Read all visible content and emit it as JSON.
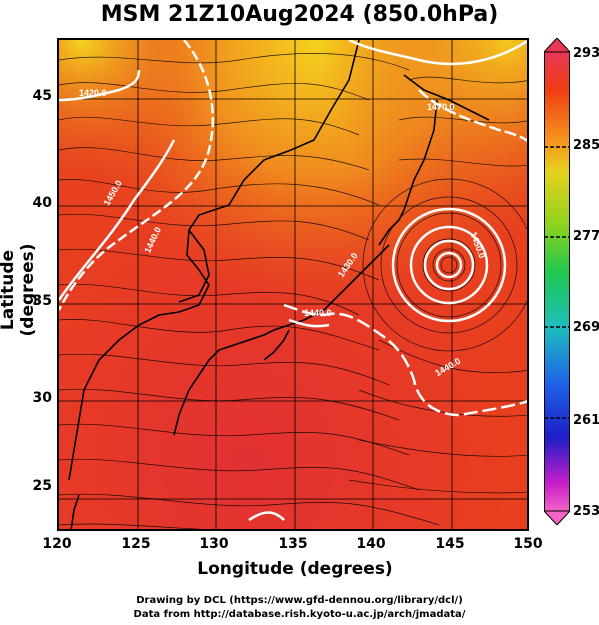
{
  "title": "MSM 21Z10Aug2024 (850.0hPa)",
  "axes": {
    "xlabel": "Longitude (degrees)",
    "ylabel": "Latitude  (degrees)",
    "xticks": [
      "120",
      "125",
      "130",
      "135",
      "140",
      "145",
      "150"
    ],
    "yticks": [
      "45",
      "40",
      "35",
      "30",
      "25"
    ]
  },
  "colorbar": {
    "labels": [
      "293",
      "285",
      "277",
      "269",
      "261",
      "253"
    ],
    "colors": [
      "#e8385a",
      "#f03c14",
      "#f4b41e",
      "#c8e61e",
      "#1ec850",
      "#1ebebe",
      "#1e64e6",
      "#1e1ec8",
      "#c81ec8",
      "#f064c8"
    ]
  },
  "contours": {
    "labels": [
      "1450.0",
      "1470.0",
      "1440.0",
      "1450.0",
      "1430.0",
      "1440.0",
      "1440.0",
      "1420.0"
    ]
  },
  "credits": {
    "line1": "Drawing by DCL (https://www.gfd-dennou.org/library/dcl/)",
    "line2": "Data from http://database.rish.kyoto-u.ac.jp/arch/jmadata/"
  },
  "chart_data": {
    "type": "heatmap",
    "title": "MSM 21Z10Aug2024 (850.0hPa)",
    "xlabel": "Longitude (degrees)",
    "ylabel": "Latitude  (degrees)",
    "xlim": [
      120,
      150
    ],
    "ylim": [
      22.4,
      47.6
    ],
    "colorbar_range": [
      253,
      293
    ],
    "colorbar_ticks": [
      293,
      285,
      277,
      269,
      261,
      253
    ],
    "typhoon_center": {
      "lon": 144.6,
      "lat": 37.0
    },
    "overlays": [
      "streamlines",
      "geopotential height contours",
      "coastlines"
    ]
  }
}
